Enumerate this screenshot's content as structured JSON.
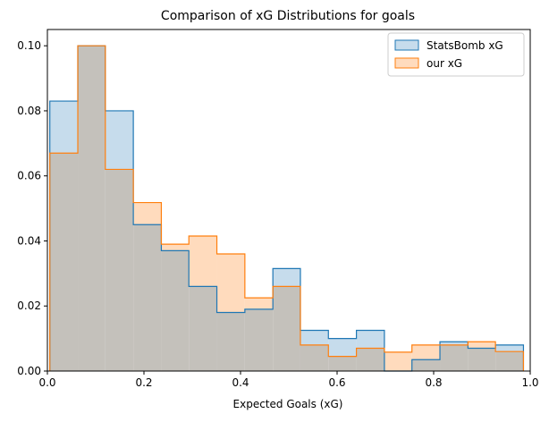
{
  "chart_data": {
    "type": "histogram",
    "title": "Comparison of xG Distributions for goals",
    "xlabel": "Expected Goals (xG)",
    "ylabel": "",
    "xlim": [
      0.0,
      1.0
    ],
    "ylim": [
      0.0,
      0.105
    ],
    "x_ticks": [
      "0.0",
      "0.2",
      "0.4",
      "0.6",
      "0.8",
      "1.0"
    ],
    "y_ticks": [
      "0.00",
      "0.02",
      "0.04",
      "0.06",
      "0.08",
      "0.10"
    ],
    "grid": false,
    "legend_position": "top-right",
    "bin_edges": [
      0.005,
      0.063,
      0.12,
      0.178,
      0.236,
      0.293,
      0.351,
      0.409,
      0.467,
      0.524,
      0.582,
      0.64,
      0.698,
      0.755,
      0.813,
      0.871,
      0.928,
      0.986
    ],
    "series": [
      {
        "name": "StatsBomb xG",
        "fill_color": "#c6dcec",
        "edge_color": "#1f77b4",
        "values": [
          0.083,
          0.1,
          0.08,
          0.045,
          0.037,
          0.026,
          0.018,
          0.019,
          0.0315,
          0.0125,
          0.01,
          0.0125,
          0.0,
          0.0035,
          0.009,
          0.007,
          0.008
        ]
      },
      {
        "name": "our xG",
        "fill_color": "#ffdbbd",
        "edge_color": "#ff7f0e",
        "values": [
          0.067,
          0.1,
          0.062,
          0.0518,
          0.039,
          0.0415,
          0.036,
          0.0225,
          0.026,
          0.008,
          0.0045,
          0.007,
          0.0058,
          0.008,
          0.008,
          0.009,
          0.006
        ]
      }
    ],
    "overlap_color": "#c4c1bb"
  }
}
